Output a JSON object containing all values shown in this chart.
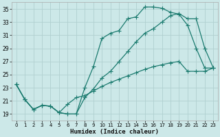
{
  "xlabel": "Humidex (Indice chaleur)",
  "bg_color": "#cce8e8",
  "line_color": "#1a7a6e",
  "grid_color": "#b0d0d0",
  "xlim": [
    -0.5,
    23.5
  ],
  "ylim": [
    18.0,
    36.0
  ],
  "yticks": [
    19,
    21,
    23,
    25,
    27,
    29,
    31,
    33,
    35
  ],
  "xticks": [
    0,
    1,
    2,
    3,
    4,
    5,
    6,
    7,
    8,
    9,
    10,
    11,
    12,
    13,
    14,
    15,
    16,
    17,
    18,
    19,
    20,
    21,
    22,
    23
  ],
  "line1_x": [
    0,
    1,
    2,
    3,
    4,
    5,
    6,
    7,
    8,
    9,
    10,
    11,
    12,
    13,
    14,
    15,
    16,
    17,
    18,
    19,
    20,
    21,
    22,
    23
  ],
  "line1_y": [
    23.5,
    21.2,
    19.7,
    20.3,
    20.2,
    19.2,
    19.0,
    19.0,
    23.0,
    26.2,
    30.5,
    31.3,
    31.7,
    33.5,
    33.8,
    35.3,
    35.3,
    35.1,
    34.5,
    34.2,
    32.5,
    29.0,
    26.0,
    26.0
  ],
  "line2_x": [
    0,
    1,
    2,
    3,
    4,
    5,
    6,
    7,
    8,
    9,
    10,
    11,
    12,
    13,
    14,
    15,
    16,
    17,
    18,
    19,
    20,
    21,
    22,
    23
  ],
  "line2_y": [
    23.5,
    21.2,
    19.7,
    20.3,
    20.2,
    19.2,
    19.0,
    19.0,
    21.5,
    22.8,
    24.5,
    25.5,
    27.0,
    28.5,
    30.0,
    31.3,
    32.0,
    33.0,
    34.0,
    34.3,
    33.5,
    33.5,
    29.0,
    26.0
  ],
  "line3_x": [
    0,
    1,
    2,
    3,
    4,
    5,
    6,
    7,
    8,
    9,
    10,
    11,
    12,
    13,
    14,
    15,
    16,
    17,
    18,
    19,
    20,
    21,
    22,
    23
  ],
  "line3_y": [
    23.5,
    21.2,
    19.7,
    20.3,
    20.2,
    19.2,
    20.5,
    21.5,
    21.8,
    22.5,
    23.2,
    23.8,
    24.3,
    24.8,
    25.3,
    25.8,
    26.2,
    26.5,
    26.8,
    27.0,
    25.5,
    25.5,
    25.5,
    26.0
  ]
}
